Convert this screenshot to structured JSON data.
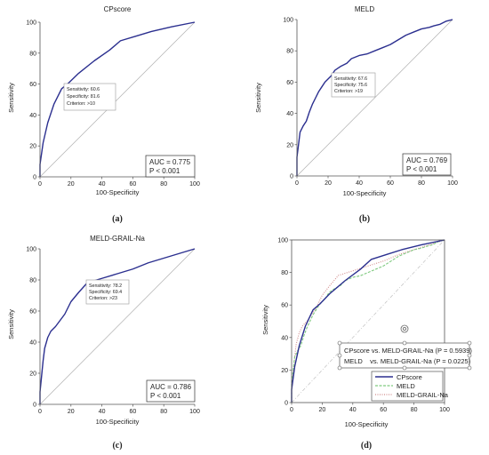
{
  "chart_data": [
    {
      "type": "line",
      "panel": "(a)",
      "title": "CPscore",
      "xlabel": "100-Specificity",
      "ylabel": "Sensitivity",
      "xlim": [
        0,
        100
      ],
      "ylim": [
        0,
        100
      ],
      "xticks": [
        "0",
        "20",
        "40",
        "60",
        "80",
        "100"
      ],
      "yticks": [
        "0",
        "20",
        "40",
        "60",
        "80",
        "100"
      ],
      "series": [
        {
          "color": "#2b2f8f",
          "x": [
            0,
            0,
            2,
            5,
            9,
            14,
            18.4,
            25,
            35,
            45,
            52,
            62,
            72,
            85,
            100
          ],
          "y": [
            0,
            8,
            22,
            35,
            47,
            57,
            60.6,
            67,
            75,
            82,
            88,
            91,
            94,
            97,
            100
          ]
        },
        {
          "color": "#b0b0b0",
          "x": [
            0,
            100
          ],
          "y": [
            0,
            100
          ]
        }
      ],
      "annotation": [
        "Sensitivity: 60.6",
        "Specificity: 81.6",
        "Criterion: >10"
      ],
      "auc_text": [
        "AUC = 0.775",
        "P < 0.001"
      ]
    },
    {
      "type": "line",
      "panel": "(b)",
      "title": "MELD",
      "xlabel": "100-Specificity",
      "ylabel": "Sensitivity",
      "xlim": [
        0,
        100
      ],
      "ylim": [
        0,
        100
      ],
      "xticks": [
        "0",
        "20",
        "40",
        "60",
        "80",
        "100"
      ],
      "yticks": [
        "0",
        "20",
        "40",
        "60",
        "80",
        "100"
      ],
      "series": [
        {
          "color": "#2b2f8f",
          "x": [
            0,
            0,
            1,
            2,
            4,
            6,
            7,
            8,
            10,
            12,
            14,
            16,
            18,
            20,
            22,
            24.4,
            28,
            32,
            35,
            40,
            45,
            50,
            55,
            60,
            65,
            70,
            75,
            80,
            85,
            88,
            92,
            96,
            100
          ],
          "y": [
            0,
            12,
            20,
            28,
            32,
            35,
            38,
            41,
            46,
            50,
            54,
            57,
            60,
            62,
            64,
            67.6,
            70,
            72,
            75,
            77,
            78,
            80,
            82,
            84,
            87,
            90,
            92,
            94,
            95,
            96,
            97,
            99,
            100
          ]
        },
        {
          "color": "#b0b0b0",
          "x": [
            0,
            100
          ],
          "y": [
            0,
            100
          ]
        }
      ],
      "annotation": [
        "Sensitivity: 67.6",
        "Specificity: 75.6",
        "Criterion: >19"
      ],
      "auc_text": [
        "AUC = 0.769",
        "P < 0.001"
      ]
    },
    {
      "type": "line",
      "panel": "(c)",
      "title": "MELD-GRAIL-Na",
      "xlabel": "100-Specificity",
      "ylabel": "Sensitivity",
      "xlim": [
        0,
        100
      ],
      "ylim": [
        0,
        100
      ],
      "xticks": [
        "0",
        "20",
        "40",
        "60",
        "80",
        "100"
      ],
      "yticks": [
        "0",
        "20",
        "40",
        "60",
        "80",
        "100"
      ],
      "series": [
        {
          "color": "#2b2f8f",
          "x": [
            0,
            0,
            1,
            2,
            3,
            5,
            7,
            10,
            13,
            16,
            20,
            25,
            30.6,
            40,
            50,
            60,
            70,
            80,
            90,
            100
          ],
          "y": [
            0,
            8,
            18,
            28,
            36,
            43,
            47,
            50,
            54,
            58,
            66,
            72,
            78.2,
            81,
            84,
            87,
            91,
            94,
            97,
            100
          ]
        },
        {
          "color": "#b0b0b0",
          "x": [
            0,
            100
          ],
          "y": [
            0,
            100
          ]
        }
      ],
      "annotation": [
        "Sensitivity: 78.2",
        "Specificity: 69.4",
        "Criterion: >23"
      ],
      "auc_text": [
        "AUC = 0.786",
        "P < 0.001"
      ]
    },
    {
      "type": "line",
      "panel": "(d)",
      "title": "",
      "xlabel": "100-Specificity",
      "ylabel": "Sensitivity",
      "xlim": [
        0,
        100
      ],
      "ylim": [
        0,
        100
      ],
      "xticks": [
        "0",
        "20",
        "40",
        "60",
        "80",
        "100"
      ],
      "yticks": [
        "0",
        "20",
        "40",
        "60",
        "80",
        "100"
      ],
      "series": [
        {
          "name": "CPscore",
          "color": "#2b2f8f",
          "x": [
            0,
            0,
            2,
            5,
            9,
            14,
            18.4,
            25,
            35,
            45,
            52,
            62,
            72,
            85,
            100
          ],
          "y": [
            0,
            8,
            22,
            35,
            47,
            57,
            60.6,
            67,
            75,
            82,
            88,
            91,
            94,
            97,
            100
          ]
        },
        {
          "name": "MELD",
          "color": "#7fc97f",
          "x": [
            0,
            0,
            1,
            2,
            4,
            6,
            7,
            8,
            10,
            12,
            14,
            16,
            18,
            20,
            22,
            24.4,
            28,
            32,
            35,
            40,
            45,
            50,
            55,
            60,
            65,
            70,
            75,
            80,
            85,
            88,
            92,
            96,
            100
          ],
          "y": [
            0,
            12,
            20,
            28,
            32,
            35,
            38,
            41,
            46,
            50,
            54,
            57,
            60,
            62,
            64,
            67.6,
            70,
            72,
            75,
            77,
            78,
            80,
            82,
            84,
            87,
            90,
            92,
            94,
            95,
            96,
            97,
            99,
            100
          ]
        },
        {
          "name": "MELD-GRAIL-Na",
          "color": "#d08a8a",
          "x": [
            0,
            0,
            1,
            2,
            3,
            5,
            7,
            10,
            13,
            16,
            20,
            25,
            30.6,
            40,
            50,
            60,
            70,
            80,
            90,
            100
          ],
          "y": [
            0,
            8,
            18,
            28,
            36,
            43,
            47,
            50,
            54,
            58,
            66,
            72,
            78.2,
            81,
            84,
            87,
            91,
            94,
            97,
            100
          ]
        },
        {
          "color": "#c0c0c0",
          "x": [
            0,
            100
          ],
          "y": [
            0,
            100
          ]
        }
      ],
      "comparisons": [
        "CPscore vs. MELD-GRAIL-Na (P = 0.5939)",
        "MELD    vs. MELD-GRAIL-Na (P = 0.0225)"
      ],
      "legend_position": "bottom-right"
    }
  ],
  "colors": {
    "roc": "#2b2f8f",
    "meld": "#7fc97f",
    "grail": "#d08a8a",
    "diagonal": "#b0b0b0",
    "frame": "#555555"
  }
}
